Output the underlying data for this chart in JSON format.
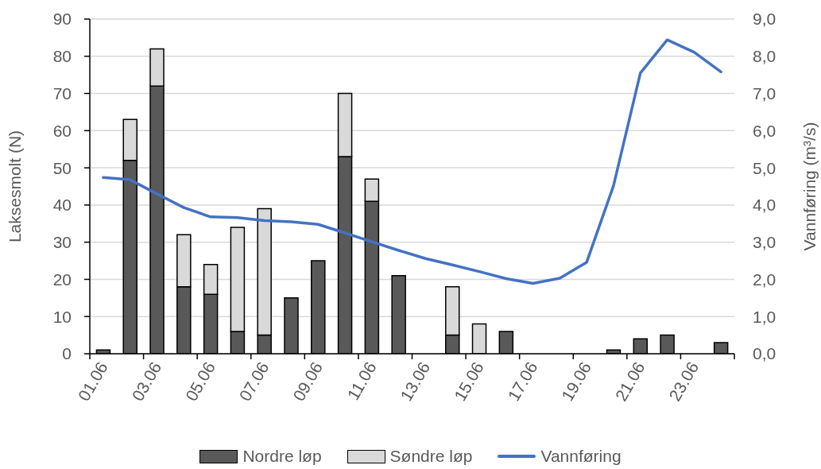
{
  "chart_data": {
    "type": "bar",
    "stacked": true,
    "ylabel": "Laksesmolt (N)",
    "y2label": "Vannføring (m³/s)",
    "categories": [
      "01.06",
      null,
      "03.06",
      null,
      "05.06",
      null,
      "07.06",
      null,
      "09.06",
      null,
      "11.06",
      null,
      "13.06",
      null,
      "15.06",
      null,
      "17.06",
      null,
      "19.06",
      null,
      "21.06",
      null,
      "23.06",
      null
    ],
    "series": [
      {
        "name": "Nordre løp",
        "color": "#595959",
        "values": [
          1,
          52,
          72,
          18,
          16,
          6,
          5,
          15,
          25,
          53,
          41,
          21,
          0,
          5,
          0,
          6,
          0,
          0,
          0,
          1,
          4,
          5,
          0,
          3
        ]
      },
      {
        "name": "Søndre løp",
        "color": "#d9d9d9",
        "values": [
          0,
          11,
          10,
          14,
          8,
          28,
          34,
          0,
          0,
          17,
          6,
          0,
          0,
          13,
          8,
          0,
          0,
          0,
          0,
          0,
          0,
          0,
          0,
          0
        ]
      },
      {
        "name": "Vannføring",
        "type": "line",
        "axis": "y2",
        "color": "#4472c4",
        "values": [
          4.74,
          4.68,
          4.3,
          3.93,
          3.68,
          3.66,
          3.58,
          3.55,
          3.48,
          3.25,
          3.01,
          2.78,
          2.56,
          2.39,
          2.21,
          2.02,
          1.89,
          2.03,
          2.46,
          4.52,
          7.55,
          8.44,
          8.11,
          7.58
        ]
      }
    ],
    "ylim": [
      0,
      90
    ],
    "yticks": [
      0,
      10,
      20,
      30,
      40,
      50,
      60,
      70,
      80,
      90
    ],
    "y2lim": [
      0,
      9
    ],
    "y2ticks": [
      {
        "value": 0,
        "label": "0,0"
      },
      {
        "value": 1,
        "label": "1,0"
      },
      {
        "value": 2,
        "label": "2,0"
      },
      {
        "value": 3,
        "label": "3,0"
      },
      {
        "value": 4,
        "label": "4,0"
      },
      {
        "value": 5,
        "label": "5,0"
      },
      {
        "value": 6,
        "label": "6,0"
      },
      {
        "value": 7,
        "label": "7,0"
      },
      {
        "value": 8,
        "label": "8,0"
      },
      {
        "value": 9,
        "label": "9,0"
      }
    ],
    "grid": "y",
    "legend": "bottom"
  }
}
